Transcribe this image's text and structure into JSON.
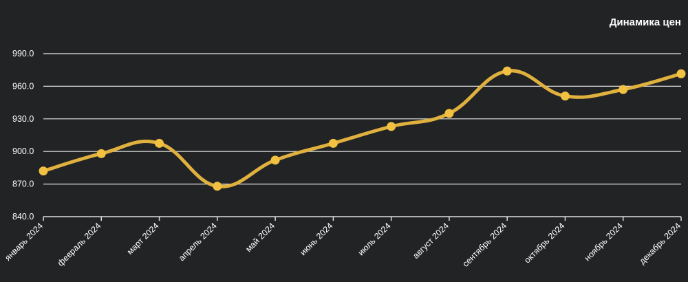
{
  "chart_data": {
    "type": "line",
    "title": "Динамика цен",
    "xlabel": "",
    "ylabel": "",
    "categories": [
      "январь 2024",
      "февраль 2024",
      "март 2024",
      "апрель 2024",
      "май 2024",
      "июнь 2024",
      "июль 2024",
      "август 2024",
      "сентябрь 2024",
      "октябрь 2024",
      "ноябрь 2024",
      "декабрь 2024"
    ],
    "series": [
      {
        "values": [
          882,
          898,
          907.5,
          868,
          892,
          907.5,
          923,
          935,
          974,
          951,
          957,
          971.5
        ]
      }
    ],
    "yticks": [
      "840.0",
      "870.0",
      "900.0",
      "930.0",
      "960.0",
      "990.0"
    ],
    "ylim": [
      840,
      990
    ],
    "grid": true,
    "line_color": "#e0b13e",
    "marker_color": "#f2c141",
    "background": "#222325"
  }
}
